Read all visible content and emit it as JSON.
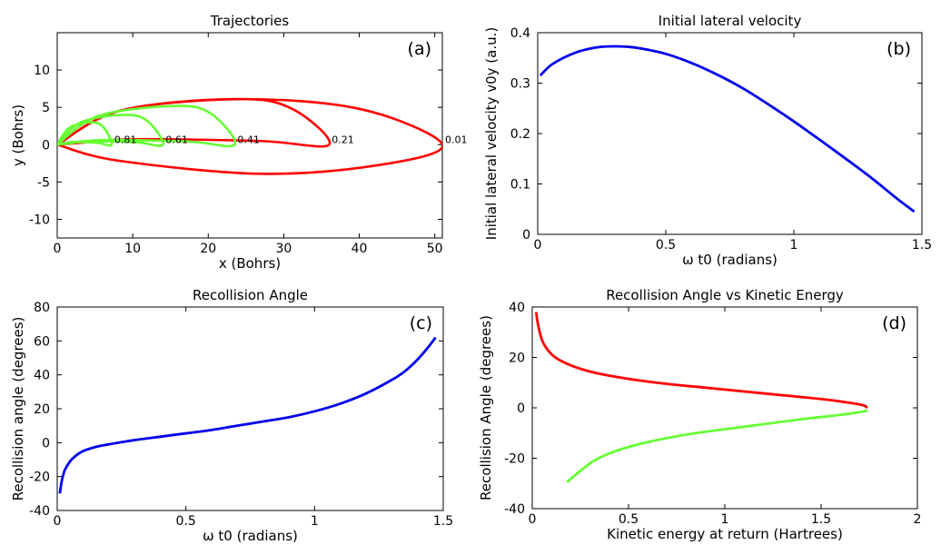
{
  "chart_data": [
    {
      "type": "line",
      "panel": "(a)",
      "title": "Trajectories",
      "xlabel": "x (Bohrs)",
      "ylabel": "y (Bohrs)",
      "xlim": [
        0,
        51
      ],
      "ylim": [
        -12.5,
        15
      ],
      "xticks": [
        0,
        10,
        20,
        30,
        40,
        50
      ],
      "yticks": [
        -10,
        -5,
        0,
        5,
        10
      ],
      "xtick_labels": [
        "0",
        "10",
        "20",
        "30",
        "40",
        "50"
      ],
      "ytick_labels": [
        "-10",
        "-5",
        "0",
        "5",
        "10"
      ],
      "series": [
        {
          "label": "0.01",
          "color": "#ff0000",
          "x_max": 51.0,
          "y_top": 6.1,
          "y_bottom": -3.9,
          "x_at_top": 24,
          "x_at_bottom": 27
        },
        {
          "label": "0.21",
          "color": "#ff0000",
          "x_max": 36.0,
          "y_top": 6.1,
          "y_bottom": 0.0,
          "x_at_top": 24,
          "x_at_bottom": 10
        },
        {
          "label": "0.41",
          "color": "#66ff33",
          "x_max": 23.5,
          "y_top": 5.2,
          "y_bottom": 0.0,
          "x_at_top": 16,
          "x_at_bottom": 6
        },
        {
          "label": "0.61",
          "color": "#66ff33",
          "x_max": 14.0,
          "y_top": 4.0,
          "y_bottom": 0.0,
          "x_at_top": 9,
          "x_at_bottom": 4
        },
        {
          "label": "0.81",
          "color": "#66ff33",
          "x_max": 7.2,
          "y_top": 3.0,
          "y_bottom": 0.0,
          "x_at_top": 4.5,
          "x_at_bottom": 2
        }
      ]
    },
    {
      "type": "line",
      "panel": "(b)",
      "title": "Initial lateral velocity",
      "xlabel": "ω t0 (radians)",
      "ylabel": "Initial lateral velocity v0y (a.u.)",
      "xlim": [
        0,
        1.5
      ],
      "ylim": [
        0,
        0.4
      ],
      "xticks": [
        0,
        0.5,
        1,
        1.5
      ],
      "yticks": [
        0,
        0.1,
        0.2,
        0.3,
        0.4
      ],
      "xtick_labels": [
        "0",
        "0.5",
        "1",
        "1.5"
      ],
      "ytick_labels": [
        "0",
        "0.1",
        "0.2",
        "0.3",
        "0.4"
      ],
      "series": [
        {
          "color": "#0000ee",
          "x": [
            0.01,
            0.05,
            0.1,
            0.15,
            0.2,
            0.25,
            0.3,
            0.35,
            0.4,
            0.5,
            0.6,
            0.7,
            0.8,
            0.9,
            1.0,
            1.1,
            1.2,
            1.3,
            1.4,
            1.47
          ],
          "y": [
            0.315,
            0.335,
            0.35,
            0.361,
            0.368,
            0.372,
            0.373,
            0.372,
            0.369,
            0.358,
            0.34,
            0.317,
            0.29,
            0.258,
            0.224,
            0.188,
            0.151,
            0.113,
            0.072,
            0.045
          ]
        }
      ]
    },
    {
      "type": "line",
      "panel": "(c)",
      "title": "Recollision Angle",
      "xlabel": "ω t0 (radians)",
      "ylabel": "Recollision angle (degrees)",
      "xlim": [
        0,
        1.5
      ],
      "ylim": [
        -40,
        80
      ],
      "xticks": [
        0,
        0.5,
        1,
        1.5
      ],
      "yticks": [
        -40,
        -20,
        0,
        20,
        40,
        60,
        80
      ],
      "xtick_labels": [
        "0",
        "0.5",
        "1",
        "1.5"
      ],
      "ytick_labels": [
        "-40",
        "-20",
        "0",
        "20",
        "40",
        "60",
        "80"
      ],
      "series": [
        {
          "color": "#0000ee",
          "x": [
            0.01,
            0.015,
            0.02,
            0.03,
            0.05,
            0.07,
            0.1,
            0.15,
            0.2,
            0.3,
            0.4,
            0.5,
            0.6,
            0.7,
            0.8,
            0.9,
            1.0,
            1.1,
            1.2,
            1.3,
            1.35,
            1.4,
            1.44,
            1.47
          ],
          "y": [
            -30,
            -25,
            -21,
            -16,
            -11,
            -8,
            -5,
            -2.5,
            -1,
            1.5,
            3.5,
            5.5,
            7.5,
            10,
            12.5,
            15,
            18.5,
            23,
            29,
            37,
            42,
            49,
            56,
            62
          ]
        }
      ]
    },
    {
      "type": "line",
      "panel": "(d)",
      "title": "Recollision Angle vs Kinetic Energy",
      "xlabel": "Kinetic energy at return (Hartrees)",
      "ylabel": "Recollision Angle (degrees)",
      "xlim": [
        0,
        2
      ],
      "ylim": [
        -40,
        40
      ],
      "xticks": [
        0,
        0.5,
        1,
        1.5,
        2
      ],
      "yticks": [
        -40,
        -20,
        0,
        20,
        40
      ],
      "xtick_labels": [
        "0",
        "0.5",
        "1",
        "1.5",
        "2"
      ],
      "ytick_labels": [
        "-40",
        "-20",
        "0",
        "20",
        "40"
      ],
      "series": [
        {
          "color": "#ff0000",
          "x": [
            0.02,
            0.03,
            0.05,
            0.08,
            0.12,
            0.18,
            0.25,
            0.35,
            0.5,
            0.7,
            0.9,
            1.1,
            1.3,
            1.5,
            1.65,
            1.72,
            1.74
          ],
          "y": [
            38,
            33,
            27,
            23,
            20,
            17.5,
            15.5,
            13.5,
            11.5,
            9.5,
            8,
            6.5,
            5,
            3.5,
            2,
            1,
            0
          ]
        },
        {
          "color": "#66ff33",
          "x": [
            0.18,
            0.25,
            0.32,
            0.42,
            0.55,
            0.7,
            0.85,
            1.0,
            1.2,
            1.4,
            1.6,
            1.72,
            1.74
          ],
          "y": [
            -29.5,
            -25,
            -21,
            -17.5,
            -14.5,
            -12,
            -10,
            -8.5,
            -6.5,
            -4.5,
            -2.8,
            -1.5,
            -1
          ]
        }
      ]
    }
  ]
}
